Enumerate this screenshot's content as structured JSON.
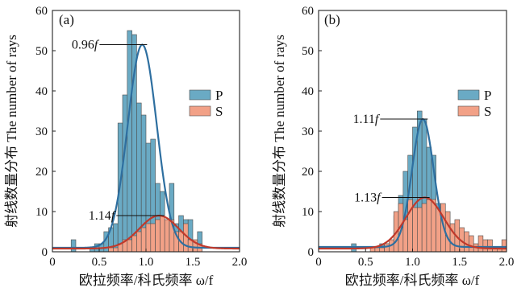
{
  "chart_data": [
    {
      "panel_label": "(a)",
      "type": "histogram-with-fit",
      "xlabel": "欧拉频率/科氏频率 ω/f",
      "ylabel": "射线数量分布 The number of rays",
      "xlim": [
        0,
        2.0
      ],
      "ylim": [
        0,
        60
      ],
      "x_ticks": [
        "0",
        "0.5",
        "1.0",
        "1.5",
        "2.0"
      ],
      "y_ticks": [
        "0",
        "10",
        "20",
        "30",
        "40",
        "50",
        "60"
      ],
      "legend": {
        "position": "right",
        "entries": [
          "P",
          "S"
        ]
      },
      "bin_width": 0.05,
      "x": [
        0.025,
        0.075,
        0.125,
        0.175,
        0.225,
        0.275,
        0.325,
        0.375,
        0.425,
        0.475,
        0.525,
        0.575,
        0.625,
        0.675,
        0.725,
        0.775,
        0.825,
        0.875,
        0.925,
        0.975,
        1.025,
        1.075,
        1.125,
        1.175,
        1.225,
        1.275,
        1.325,
        1.375,
        1.425,
        1.475,
        1.525,
        1.575,
        1.625,
        1.675,
        1.725,
        1.775,
        1.825,
        1.875,
        1.925,
        1.975
      ],
      "series": [
        {
          "name": "P",
          "color": "#6aaac4",
          "values": [
            0,
            0,
            0,
            0,
            3,
            0,
            0,
            0,
            1,
            2,
            2,
            5,
            6,
            7,
            32,
            39,
            55,
            54,
            37,
            34,
            27,
            28,
            17,
            15,
            5,
            17,
            7,
            9,
            8,
            8,
            0,
            5,
            0,
            0,
            0,
            0,
            0,
            0,
            0,
            0
          ]
        },
        {
          "name": "S",
          "color": "#f2a187",
          "values": [
            0,
            0,
            0,
            0,
            0,
            0,
            0,
            0,
            0,
            0,
            0,
            0,
            1,
            1,
            2,
            3,
            3,
            4,
            5,
            6,
            7,
            7,
            8,
            9,
            8,
            8,
            5,
            5,
            7,
            3,
            3,
            2,
            0,
            0,
            0,
            0,
            0,
            0,
            0,
            0
          ]
        }
      ],
      "fits": [
        {
          "series": "P",
          "color": "#2e6fa0",
          "peak_x": 0.96,
          "peak_y": 51.5,
          "sigma": 0.155,
          "baseline": 1.0
        },
        {
          "series": "S",
          "color": "#c0392b",
          "peak_x": 1.14,
          "peak_y": 9.0,
          "sigma": 0.21,
          "baseline": 0.8
        }
      ],
      "annotations": [
        {
          "base": "0.96",
          "italic": "f",
          "x": 0.96,
          "y": 51.5
        },
        {
          "base": "1.14",
          "italic": "f",
          "x": 1.14,
          "y": 9.0
        }
      ]
    },
    {
      "panel_label": "(b)",
      "type": "histogram-with-fit",
      "xlabel": "欧拉频率/科氏频率 ω/f",
      "ylabel": "射线数量分布 The number of rays",
      "xlim": [
        0,
        2.0
      ],
      "ylim": [
        0,
        60
      ],
      "x_ticks": [
        "0",
        "0.5",
        "1.0",
        "1.5",
        "2.0"
      ],
      "y_ticks": [
        "0",
        "10",
        "20",
        "30",
        "40",
        "50",
        "60"
      ],
      "legend": {
        "position": "right",
        "entries": [
          "P",
          "S"
        ]
      },
      "bin_width": 0.05,
      "x": [
        0.025,
        0.075,
        0.125,
        0.175,
        0.225,
        0.275,
        0.325,
        0.375,
        0.425,
        0.475,
        0.525,
        0.575,
        0.625,
        0.675,
        0.725,
        0.775,
        0.825,
        0.875,
        0.925,
        0.975,
        1.025,
        1.075,
        1.125,
        1.175,
        1.225,
        1.275,
        1.325,
        1.375,
        1.425,
        1.475,
        1.525,
        1.575,
        1.625,
        1.675,
        1.725,
        1.775,
        1.825,
        1.875,
        1.925,
        1.975
      ],
      "series": [
        {
          "name": "P",
          "color": "#6aaac4",
          "values": [
            0,
            0,
            0,
            0,
            0,
            0,
            0,
            2,
            0,
            0,
            0,
            0,
            0,
            2,
            2,
            2,
            9,
            14,
            20,
            24,
            31,
            35,
            33,
            26,
            24,
            12,
            7,
            5,
            3,
            2,
            1,
            0,
            0,
            0,
            0,
            0,
            0,
            0,
            0,
            0
          ]
        },
        {
          "name": "S",
          "color": "#f2a187",
          "values": [
            0,
            0,
            0,
            0,
            0,
            0,
            0,
            0,
            0,
            0,
            0,
            1,
            1,
            1,
            2,
            3,
            10,
            12,
            8,
            13,
            11,
            11,
            12,
            13,
            13,
            11,
            12,
            10,
            7,
            8,
            6,
            5,
            4,
            2,
            4,
            3,
            3,
            1,
            1,
            3
          ]
        }
      ],
      "fits": [
        {
          "series": "P",
          "color": "#2e6fa0",
          "peak_x": 1.11,
          "peak_y": 33.0,
          "sigma": 0.115,
          "baseline": 1.2
        },
        {
          "series": "S",
          "color": "#c0392b",
          "peak_x": 1.13,
          "peak_y": 13.5,
          "sigma": 0.2,
          "baseline": 0.8
        }
      ],
      "annotations": [
        {
          "base": "1.11",
          "italic": "f",
          "x": 1.11,
          "y": 33.0
        },
        {
          "base": "1.13",
          "italic": "f",
          "x": 1.13,
          "y": 13.5
        }
      ]
    }
  ]
}
